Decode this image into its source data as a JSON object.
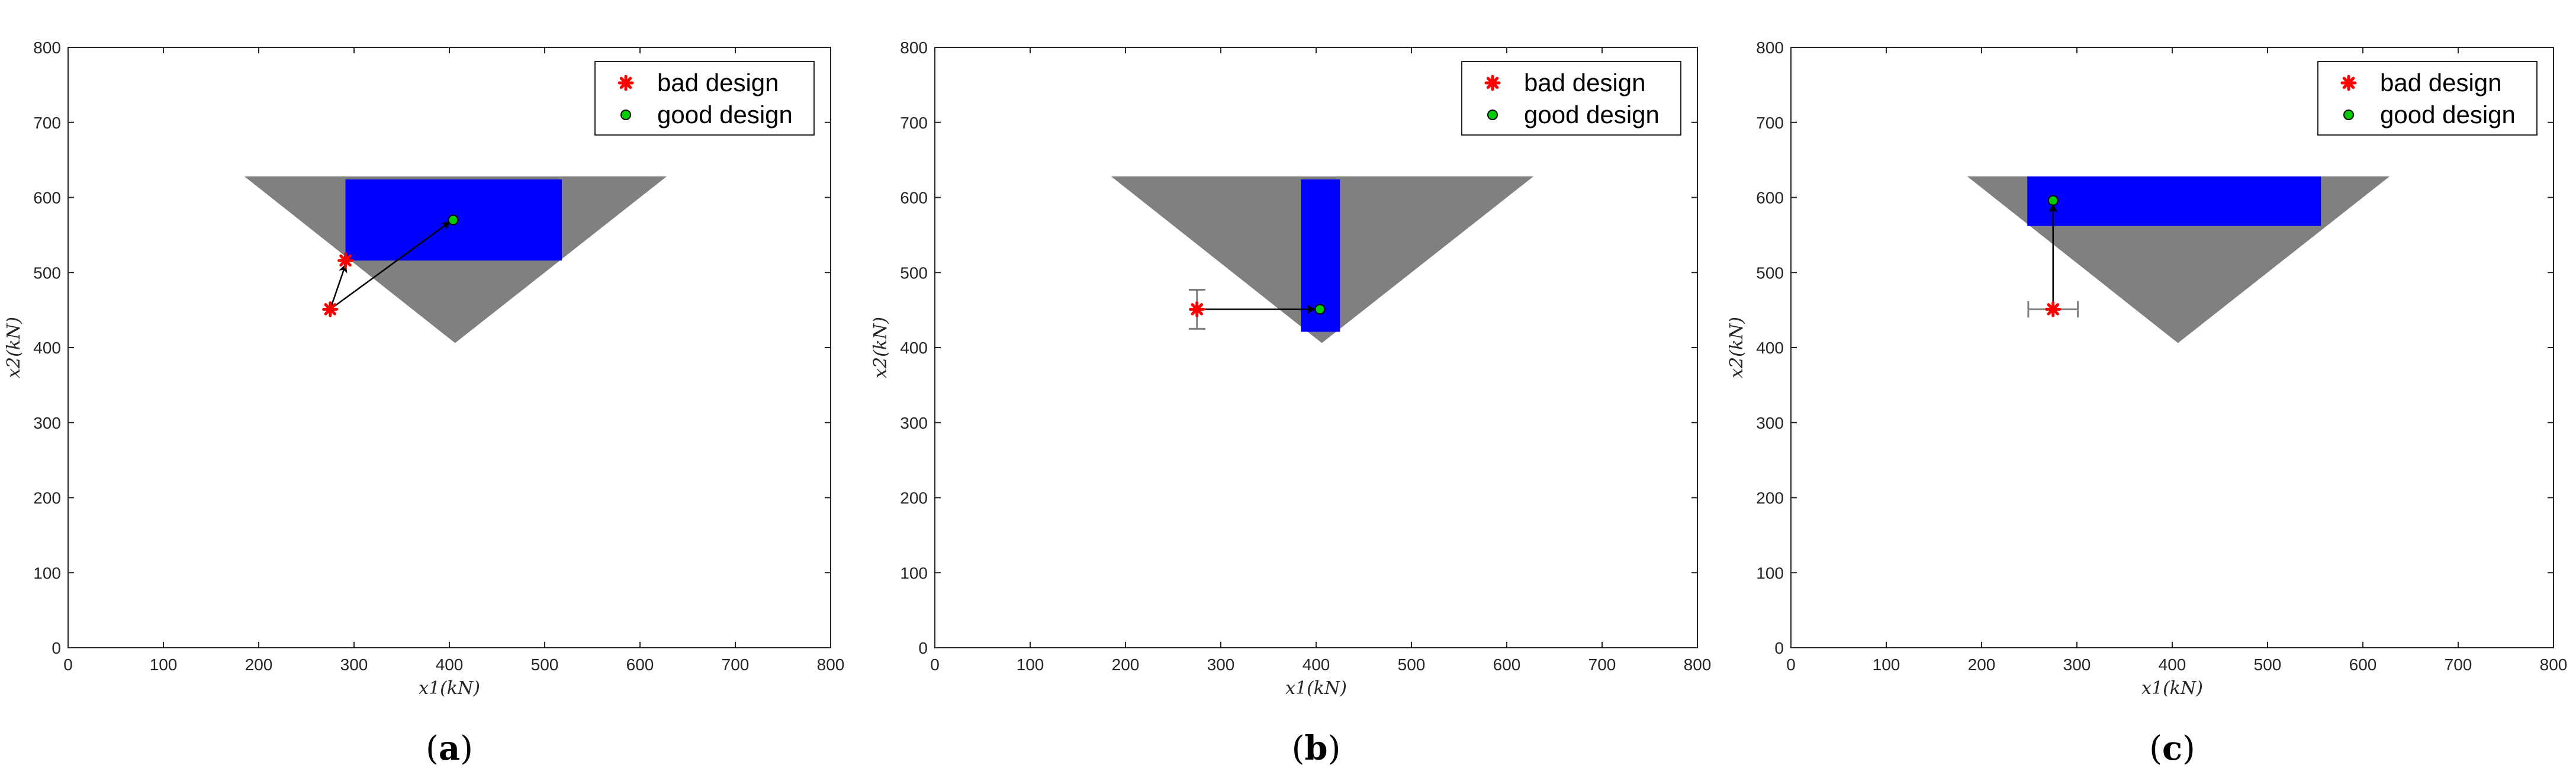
{
  "legend": {
    "bad_label": "bad design",
    "good_label": "good design"
  },
  "colors": {
    "feasible_region": "#808080",
    "design_box": "#0000FF",
    "bad_marker": "#FF0000",
    "good_marker_fill": "#00CC00",
    "arrow": "#000000",
    "axes": "#262626"
  },
  "chart_data": [
    {
      "type": "scatter",
      "caption": "(a)",
      "caption_letter": "a",
      "xlabel": "x1(kN)",
      "ylabel": "x2(kN)",
      "xlim": [
        0,
        800
      ],
      "ylim": [
        0,
        800
      ],
      "xticks": [
        0,
        100,
        200,
        300,
        400,
        500,
        600,
        700,
        800
      ],
      "yticks": [
        0,
        100,
        200,
        300,
        400,
        500,
        600,
        700,
        800
      ],
      "grid": false,
      "legend_position": "top-right",
      "feasible_triangle": [
        [
          185,
          628
        ],
        [
          628,
          628
        ],
        [
          406,
          406
        ]
      ],
      "design_box": {
        "x": [
          291,
          518
        ],
        "y": [
          516,
          624
        ]
      },
      "bad_points": [
        [
          275,
          451
        ],
        [
          291,
          516
        ]
      ],
      "good_point": [
        404,
        570
      ],
      "arrows": [
        {
          "from": [
            275,
            451
          ],
          "to": [
            291,
            510
          ]
        },
        {
          "from": [
            275,
            451
          ],
          "to": [
            400,
            567
          ]
        }
      ],
      "error_bars": []
    },
    {
      "type": "scatter",
      "caption": "(b)",
      "caption_letter": "b",
      "xlabel": "x1(kN)",
      "ylabel": "x2(kN)",
      "xlim": [
        0,
        800
      ],
      "ylim": [
        0,
        800
      ],
      "xticks": [
        0,
        100,
        200,
        300,
        400,
        500,
        600,
        700,
        800
      ],
      "yticks": [
        0,
        100,
        200,
        300,
        400,
        500,
        600,
        700,
        800
      ],
      "grid": false,
      "legend_position": "top-right",
      "feasible_triangle": [
        [
          185,
          628
        ],
        [
          628,
          628
        ],
        [
          406,
          406
        ]
      ],
      "design_box": {
        "x": [
          384,
          425
        ],
        "y": [
          421,
          624
        ]
      },
      "bad_points": [
        [
          275,
          451
        ]
      ],
      "good_point": [
        404,
        451
      ],
      "arrows": [
        {
          "from": [
            275,
            451
          ],
          "to": [
            398,
            451
          ]
        }
      ],
      "error_bars": [
        {
          "center": [
            275,
            451
          ],
          "orientation": "vertical",
          "half_width": 26
        }
      ]
    },
    {
      "type": "scatter",
      "caption": "(c)",
      "caption_letter": "c",
      "xlabel": "x1(kN)",
      "ylabel": "x2(kN)",
      "xlim": [
        0,
        800
      ],
      "ylim": [
        0,
        800
      ],
      "xticks": [
        0,
        100,
        200,
        300,
        400,
        500,
        600,
        700,
        800
      ],
      "yticks": [
        0,
        100,
        200,
        300,
        400,
        500,
        600,
        700,
        800
      ],
      "grid": false,
      "legend_position": "top-right",
      "feasible_triangle": [
        [
          185,
          628
        ],
        [
          628,
          628
        ],
        [
          406,
          406
        ]
      ],
      "design_box": {
        "x": [
          248,
          556
        ],
        "y": [
          562,
          628
        ]
      },
      "bad_points": [
        [
          275,
          451
        ]
      ],
      "good_point": [
        275,
        596
      ],
      "arrows": [
        {
          "from": [
            275,
            451
          ],
          "to": [
            275,
            590
          ]
        }
      ],
      "error_bars": [
        {
          "center": [
            275,
            451
          ],
          "orientation": "horizontal",
          "half_width": 26
        }
      ]
    }
  ]
}
